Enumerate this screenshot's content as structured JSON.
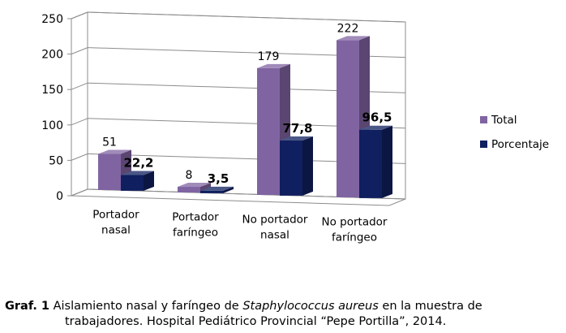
{
  "chart_data": {
    "type": "bar",
    "categories": [
      [
        "Portador",
        "nasal"
      ],
      [
        "Portador",
        "faríngeo"
      ],
      [
        "No portador",
        "nasal"
      ],
      [
        "No portador",
        "faríngeo"
      ]
    ],
    "series": [
      {
        "name": "Total",
        "values": [
          51,
          8,
          179,
          222
        ],
        "labels": [
          "51",
          "8",
          "179",
          "222"
        ],
        "color": "#8064A2",
        "label_bold": false
      },
      {
        "name": "Porcentaje",
        "values": [
          22.2,
          3.5,
          77.8,
          96.5
        ],
        "labels": [
          "22,2",
          "3,5",
          "77,8",
          "96,5"
        ],
        "color": "#0F1F5F",
        "label_bold": true
      }
    ],
    "ylim": [
      0,
      250
    ],
    "yticks": [
      "0",
      "50",
      "100",
      "150",
      "200",
      "250"
    ],
    "grid": true,
    "legend_position": "right",
    "style": "3d-clustered-column"
  },
  "caption": {
    "label": "Graf. 1",
    "text_before": " Aislamiento nasal y faríngeo de ",
    "species": "Staphylococcus aureus",
    "text_after": "   en la muestra de",
    "line2": "trabajadores. Hospital Pediátrico Provincial “Pepe Portilla”, 2014."
  }
}
